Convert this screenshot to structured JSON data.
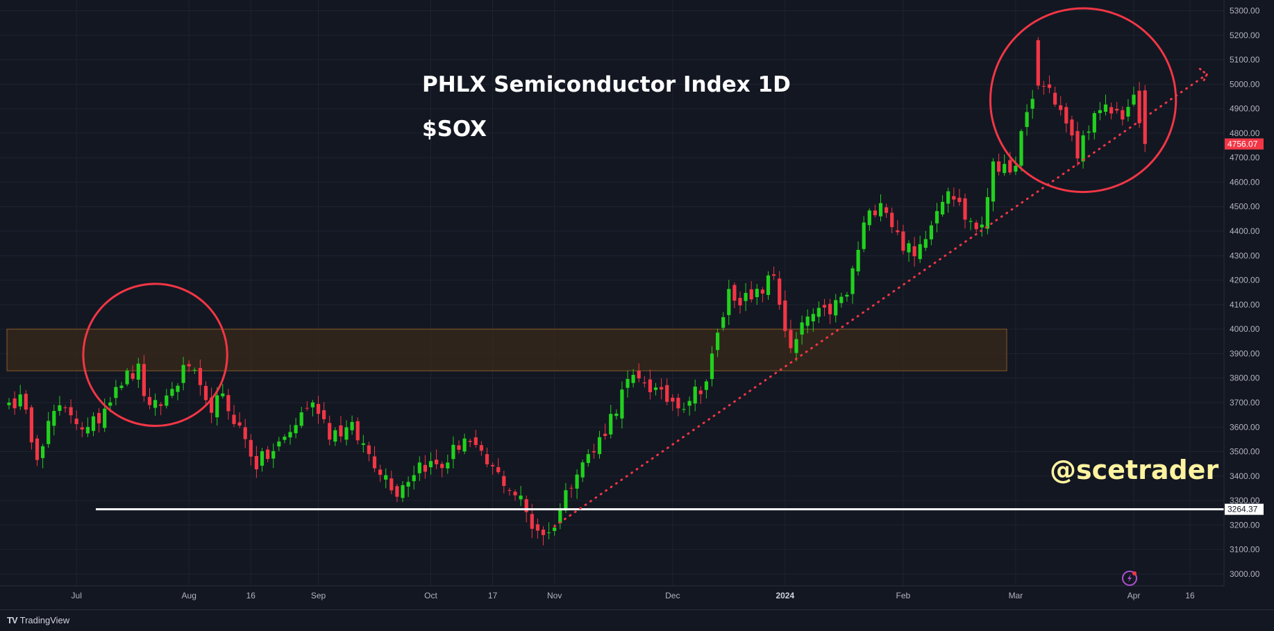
{
  "footer": {
    "brand_mark": "TV",
    "brand": "TradingView"
  },
  "colors": {
    "background": "#131722",
    "up": "#22d11e",
    "down": "#f23645",
    "zone": "#3a2a1a",
    "zone_border": "#8a5a2a",
    "annotation": "#f23645",
    "support": "#ffffff",
    "watermark": "#fff3a0"
  },
  "chart_data": {
    "type": "candlestick",
    "title": "PHLX Semiconductor Index 1D",
    "subtitle": "$SOX",
    "watermark": "@scetrader",
    "ylim": [
      2950,
      5340
    ],
    "y_ticks": [
      3000,
      3100,
      3200,
      3300,
      3400,
      3500,
      3600,
      3700,
      3800,
      3900,
      4000,
      4100,
      4200,
      4300,
      4400,
      4500,
      4600,
      4700,
      4800,
      4900,
      5000,
      5100,
      5200,
      5300
    ],
    "y_tick_labels": [
      "3000.00",
      "3100.00",
      "3200.00",
      "3300.00",
      "3400.00",
      "3500.00",
      "3600.00",
      "3700.00",
      "3800.00",
      "3900.00",
      "4000.00",
      "4100.00",
      "4200.00",
      "4300.00",
      "4400.00",
      "4500.00",
      "4600.00",
      "4700.00",
      "4800.00",
      "4900.00",
      "5000.00",
      "5100.00",
      "5200.00",
      "5300.00"
    ],
    "x_ticks": [
      {
        "label": "Jul",
        "index": 12,
        "bold": false
      },
      {
        "label": "Aug",
        "index": 32,
        "bold": false
      },
      {
        "label": "16",
        "index": 43,
        "bold": false
      },
      {
        "label": "Sep",
        "index": 55,
        "bold": false
      },
      {
        "label": "Oct",
        "index": 75,
        "bold": false
      },
      {
        "label": "17",
        "index": 86,
        "bold": false
      },
      {
        "label": "Nov",
        "index": 97,
        "bold": false
      },
      {
        "label": "Dec",
        "index": 118,
        "bold": false
      },
      {
        "label": "2024",
        "index": 138,
        "bold": true
      },
      {
        "label": "Feb",
        "index": 159,
        "bold": false
      },
      {
        "label": "Mar",
        "index": 179,
        "bold": false
      },
      {
        "label": "Apr",
        "index": 200,
        "bold": false
      },
      {
        "label": "16",
        "index": 210,
        "bold": false
      }
    ],
    "last_price": 4756.07,
    "last_price_label": "4756.07",
    "support_level": 3264.37,
    "support_label": "3264.37",
    "resistance_zone": [
      3830,
      4000
    ],
    "trendline": {
      "from_index": 97,
      "from_price": 3195,
      "to_index": 213,
      "to_price": 5040
    },
    "circles": [
      {
        "center_index": 26,
        "center_price": 3895,
        "radius_x_bars": 12.8,
        "radius_y_price": 290
      },
      {
        "center_index": 191,
        "center_price": 4935,
        "radius_x_bars": 16.5,
        "radius_y_price": 375
      }
    ],
    "anchors": [
      [
        0,
        3700
      ],
      [
        2,
        3710
      ],
      [
        5,
        3500
      ],
      [
        8,
        3660
      ],
      [
        11,
        3660
      ],
      [
        14,
        3580
      ],
      [
        16,
        3640
      ],
      [
        19,
        3780
      ],
      [
        23,
        3830
      ],
      [
        25,
        3660
      ],
      [
        28,
        3720
      ],
      [
        32,
        3860
      ],
      [
        35,
        3680
      ],
      [
        38,
        3710
      ],
      [
        40,
        3640
      ],
      [
        44,
        3450
      ],
      [
        47,
        3500
      ],
      [
        50,
        3580
      ],
      [
        53,
        3690
      ],
      [
        55,
        3680
      ],
      [
        57,
        3580
      ],
      [
        61,
        3590
      ],
      [
        65,
        3460
      ],
      [
        69,
        3340
      ],
      [
        73,
        3450
      ],
      [
        77,
        3440
      ],
      [
        81,
        3560
      ],
      [
        84,
        3470
      ],
      [
        88,
        3380
      ],
      [
        91,
        3300
      ],
      [
        93,
        3200
      ],
      [
        96,
        3160
      ],
      [
        98,
        3270
      ],
      [
        101,
        3440
      ],
      [
        104,
        3500
      ],
      [
        107,
        3640
      ],
      [
        110,
        3780
      ],
      [
        113,
        3790
      ],
      [
        116,
        3720
      ],
      [
        120,
        3700
      ],
      [
        124,
        3790
      ],
      [
        128,
        4150
      ],
      [
        132,
        4110
      ],
      [
        136,
        4220
      ],
      [
        139,
        3900
      ],
      [
        142,
        4050
      ],
      [
        145,
        4060
      ],
      [
        149,
        4140
      ],
      [
        152,
        4420
      ],
      [
        155,
        4540
      ],
      [
        158,
        4380
      ],
      [
        161,
        4290
      ],
      [
        164,
        4450
      ],
      [
        167,
        4590
      ],
      [
        170,
        4460
      ],
      [
        173,
        4400
      ],
      [
        175,
        4700
      ],
      [
        178,
        4610
      ],
      [
        180,
        4790
      ],
      [
        183,
        5000
      ],
      [
        185,
        4980
      ],
      [
        187,
        4890
      ],
      [
        190,
        4710
      ],
      [
        192,
        4840
      ],
      [
        195,
        4890
      ],
      [
        198,
        4880
      ],
      [
        200,
        4930
      ],
      [
        202,
        4756.07
      ]
    ],
    "first_index": 0,
    "last_index": 202,
    "total_slots": 217
  }
}
